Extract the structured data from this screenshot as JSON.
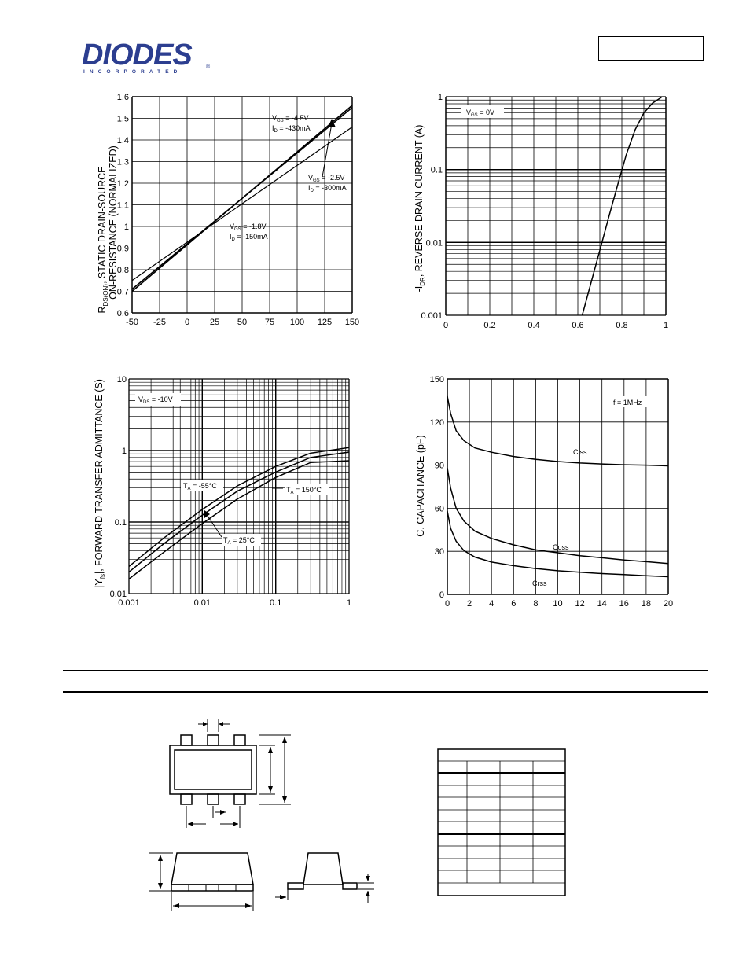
{
  "brand": {
    "name": "DIODES",
    "subtitle": "INCORPORATED",
    "registered": "®"
  },
  "colors": {
    "brand_blue": "#2c3e90"
  },
  "chart_data": [
    {
      "type": "line",
      "ylabel_line1": "R",
      "ylabel_sub": "DS(ON)",
      "ylabel_line1_rest": ", STATIC DRAIN-SOURCE",
      "ylabel_line2": "ON-RESISTANCE (NORMALIZED)",
      "xlim": [
        -50,
        150
      ],
      "ylim": [
        0.6,
        1.6
      ],
      "xticks": [
        "-50",
        "-25",
        "0",
        "25",
        "50",
        "75",
        "100",
        "125",
        "150"
      ],
      "yticks": [
        "0.6",
        "0.7",
        "0.8",
        "0.9",
        "1",
        "1.1",
        "1.2",
        "1.3",
        "1.4",
        "1.5",
        "1.6"
      ],
      "annotations": [
        {
          "v": "V",
          "vsub": "GS",
          "vrest": " = -4.5V",
          "i": "I",
          "isub": "D",
          "irest": " = -430mA"
        },
        {
          "v": "V",
          "vsub": "GS",
          "vrest": " = -2.5V",
          "i": "I",
          "isub": "D",
          "irest": " = -300mA"
        },
        {
          "v": "V",
          "vsub": "GS",
          "vrest": " = -1.8V",
          "i": "I",
          "isub": "D",
          "irest": " = -150mA"
        }
      ],
      "series": [
        {
          "x": [
            -50,
            150
          ],
          "y": [
            0.7,
            1.56
          ]
        },
        {
          "x": [
            -50,
            150
          ],
          "y": [
            0.71,
            1.55
          ]
        },
        {
          "x": [
            -50,
            150
          ],
          "y": [
            0.75,
            1.46
          ]
        }
      ]
    },
    {
      "type": "line",
      "ylabel_pre": "-I",
      "ylabel_sub": "DR",
      "ylabel_rest": ", REVERSE DRAIN CURRENT (A)",
      "xlim": [
        0,
        1
      ],
      "ylim": [
        0.001,
        1
      ],
      "yscale": "log",
      "xticks": [
        "0",
        "0.2",
        "0.4",
        "0.6",
        "0.8",
        "1"
      ],
      "yticks": [
        "0.001",
        "0.01",
        "0.1",
        "1"
      ],
      "annotation": {
        "v": "V",
        "vsub": "GS",
        "vrest": " = 0V"
      },
      "series": [
        {
          "x": [
            0.62,
            0.66,
            0.7,
            0.74,
            0.78,
            0.82,
            0.86,
            0.9,
            0.94,
            0.98
          ],
          "y": [
            0.001,
            0.0028,
            0.0078,
            0.022,
            0.06,
            0.16,
            0.35,
            0.6,
            0.82,
            0.98
          ]
        }
      ]
    },
    {
      "type": "line",
      "ylabel_pre": "|Y",
      "ylabel_sub": "fs",
      "ylabel_rest": "|, FORWARD TRANSFER ADMITTANCE (S)",
      "xscale": "log",
      "yscale": "log",
      "xlim": [
        0.001,
        1
      ],
      "ylim": [
        0.01,
        10
      ],
      "xticks": [
        "0.001",
        "0.01",
        "0.1",
        "1"
      ],
      "yticks": [
        "0.01",
        "0.1",
        "1",
        "10"
      ],
      "annotations": [
        {
          "t": "T",
          "sub": "A",
          "rest": " = -55°C"
        },
        {
          "t": "T",
          "sub": "A",
          "rest": " = 25°C"
        },
        {
          "t": "T",
          "sub": "A",
          "rest": " = 150°C"
        }
      ],
      "vds_label": {
        "v": "V",
        "sub": "DS",
        "rest": " = -10V"
      },
      "series": [
        {
          "x": [
            0.001,
            0.003,
            0.01,
            0.03,
            0.1,
            0.3,
            1
          ],
          "y": [
            0.024,
            0.06,
            0.15,
            0.32,
            0.6,
            0.92,
            1.1
          ]
        },
        {
          "x": [
            0.001,
            0.003,
            0.01,
            0.03,
            0.1,
            0.3,
            1
          ],
          "y": [
            0.02,
            0.05,
            0.125,
            0.27,
            0.5,
            0.8,
            0.95
          ]
        },
        {
          "x": [
            0.001,
            0.003,
            0.01,
            0.03,
            0.1,
            0.3,
            1
          ],
          "y": [
            0.016,
            0.038,
            0.095,
            0.21,
            0.42,
            0.68,
            0.72
          ]
        }
      ]
    },
    {
      "type": "line",
      "ylabel": "C, CAPACITANCE (pF)",
      "xlim": [
        0,
        20
      ],
      "ylim": [
        0,
        150
      ],
      "xticks": [
        "0",
        "2",
        "4",
        "6",
        "8",
        "10",
        "12",
        "14",
        "16",
        "18",
        "20"
      ],
      "yticks": [
        "0",
        "30",
        "60",
        "90",
        "120",
        "150"
      ],
      "freq_label": "f = 1MHz",
      "series": [
        {
          "name": "Ciss",
          "x": [
            0,
            0.3,
            0.8,
            1.5,
            2.5,
            4,
            6,
            8,
            10,
            12,
            14,
            16,
            18,
            20
          ],
          "y": [
            138,
            126,
            114,
            107,
            102,
            99,
            96,
            94,
            92.5,
            91.5,
            90.8,
            90.3,
            90,
            89.5
          ]
        },
        {
          "name": "Coss",
          "x": [
            0,
            0.3,
            0.8,
            1.5,
            2.5,
            4,
            6,
            8,
            10,
            12,
            14,
            16,
            18,
            20
          ],
          "y": [
            88,
            74,
            60,
            51,
            44,
            39,
            34.5,
            31,
            29,
            27,
            25.5,
            24,
            22.8,
            21.5
          ]
        },
        {
          "name": "Crss",
          "x": [
            0,
            0.3,
            0.8,
            1.5,
            2.5,
            4,
            6,
            8,
            10,
            12,
            14,
            16,
            18,
            20
          ],
          "y": [
            58,
            46,
            37,
            30.5,
            26,
            22.5,
            20,
            18,
            16.5,
            15.5,
            14.5,
            13.8,
            13,
            12.3
          ]
        }
      ]
    }
  ]
}
